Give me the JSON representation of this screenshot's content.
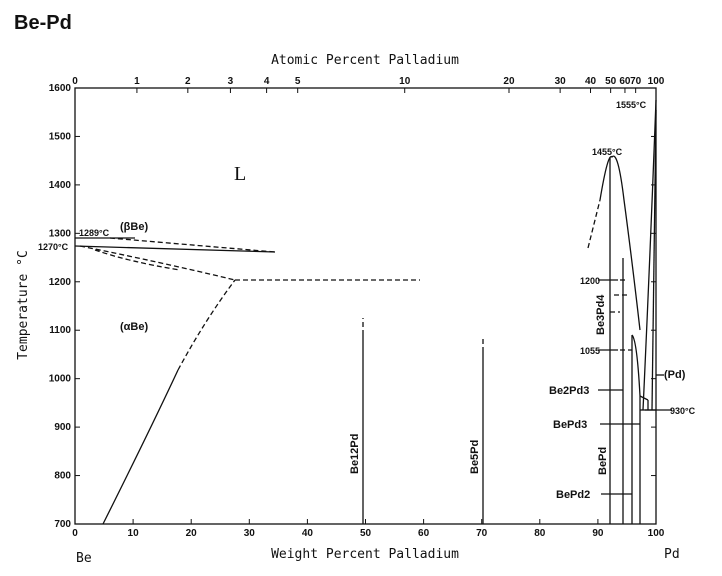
{
  "title": "Be-Pd",
  "axes": {
    "top_title": "Atomic Percent Palladium",
    "bottom_title": "Weight Percent Palladium",
    "left_title": "Temperature °C",
    "left_end": "Be",
    "right_end": "Pd",
    "y_ticks": [
      "700",
      "800",
      "900",
      "1000",
      "1100",
      "1200",
      "1300",
      "1400",
      "1500",
      "1600"
    ],
    "x_ticks": [
      "0",
      "10",
      "20",
      "30",
      "40",
      "50",
      "60",
      "70",
      "80",
      "90",
      "100"
    ],
    "top_ticks": [
      "0",
      "1",
      "2",
      "3",
      "4",
      "5",
      "10",
      "20",
      "30",
      "40",
      "50",
      "60",
      "70",
      "100"
    ]
  },
  "labels": {
    "liquid": "L",
    "beta_be": "(βBe)",
    "alpha_be": "(αBe)",
    "pd_phase": "(Pd)",
    "be12pd": "Be12Pd",
    "be5pd": "Be5Pd",
    "be3pd4": "Be3Pd4",
    "be2pd3": "Be2Pd3",
    "bepd3": "BePd3",
    "bepd": "BePd",
    "bepd2": "BePd2"
  },
  "temperatures": {
    "t1289": "1289°C",
    "t1270": "1270°C",
    "t1555": "1555°C",
    "t1455": "1455°C",
    "t1200": "1200",
    "t1055": "1055",
    "t930": "930°C"
  }
}
